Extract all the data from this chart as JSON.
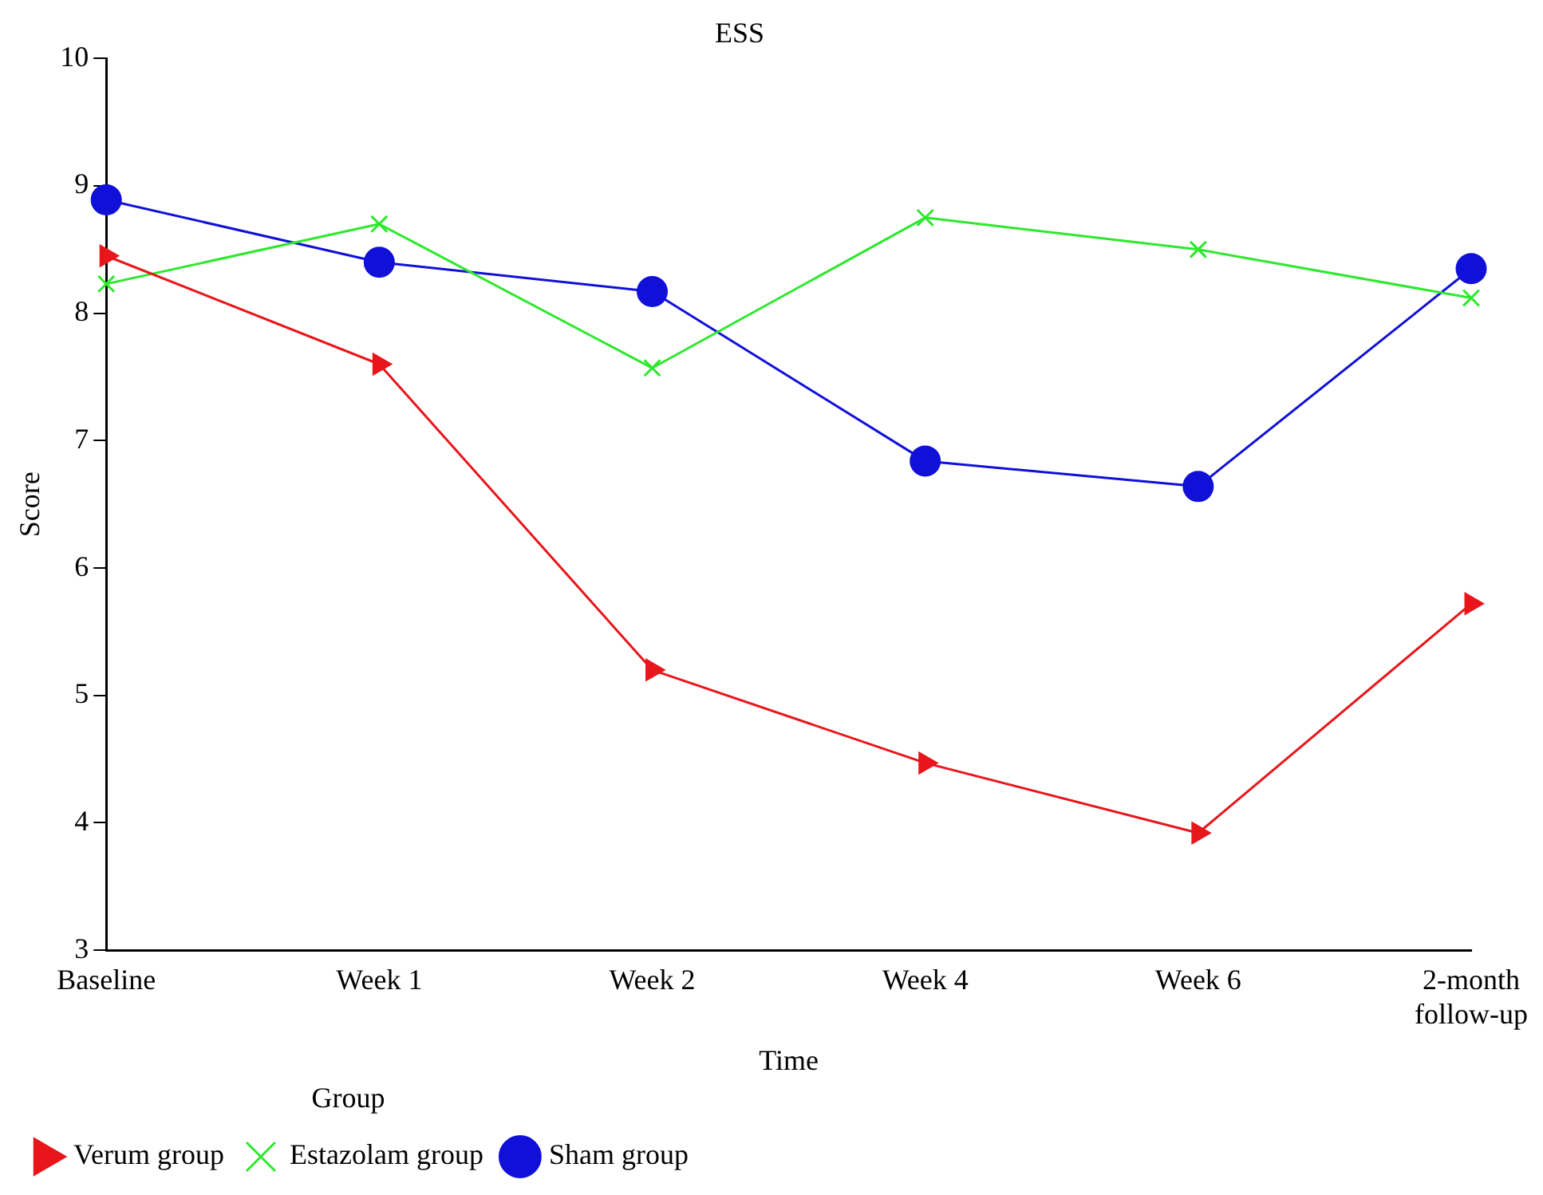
{
  "chart_data": {
    "type": "line",
    "title": "ESS",
    "xlabel": "Time",
    "ylabel": "Score",
    "legend_title": "Group",
    "categories": [
      "Baseline",
      "Week 1",
      "Week 2",
      "Week 4",
      "Week 6",
      "2-month follow-up"
    ],
    "series": [
      {
        "name": "Verum group",
        "color": "#e8161b",
        "marker": "triangle",
        "values": [
          8.45,
          7.6,
          5.2,
          4.47,
          3.92,
          5.72
        ]
      },
      {
        "name": "Estazolam group",
        "color": "#2ee82e",
        "marker": "cross",
        "values": [
          8.23,
          8.7,
          7.57,
          8.75,
          8.5,
          8.12
        ]
      },
      {
        "name": "Sham group",
        "color": "#1010d8",
        "marker": "circle",
        "values": [
          8.89,
          8.4,
          8.17,
          6.84,
          6.64,
          8.35
        ]
      }
    ],
    "ylim": [
      3,
      10
    ],
    "yticks": [
      3,
      4,
      5,
      6,
      7,
      8,
      9,
      10
    ],
    "grid": false,
    "legend": "bottom left"
  }
}
